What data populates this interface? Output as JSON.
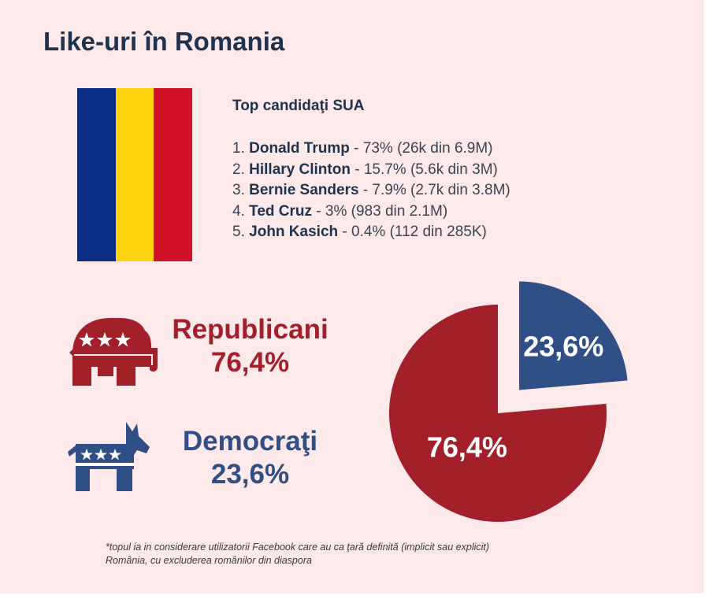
{
  "title": "Like-uri în Romania",
  "top": {
    "heading": "Top candidaţi SUA",
    "items": [
      {
        "rank": "1.",
        "name": "Donald Trump",
        "detail": " - 73% (26k din 6.9M)"
      },
      {
        "rank": "2.",
        "name": "Hillary Clinton",
        "detail": " - 15.7% (5.6k din 3M)"
      },
      {
        "rank": "3.",
        "name": "Bernie Sanders",
        "detail": " - 7.9% (2.7k din 3.8M)"
      },
      {
        "rank": "4.",
        "name": "Ted Cruz",
        "detail": " - 3% (983 din 2.1M)"
      },
      {
        "rank": "5.",
        "name": "John Kasich",
        "detail": " - 0.4% (112 din 285K)"
      }
    ]
  },
  "parties": {
    "republicans": {
      "name": "Republicani",
      "pct": "76,4%"
    },
    "democrats": {
      "name": "Democraţi",
      "pct": "23,6%"
    }
  },
  "colors": {
    "republican": "#a3202a",
    "democrat": "#2f4f86",
    "flag_blue": "#0b2d84",
    "flag_yellow": "#fdd20f",
    "flag_red": "#d01129"
  },
  "chart_data": {
    "type": "pie",
    "series": [
      {
        "name": "Republicani",
        "value": 76.4,
        "label": "76,4%",
        "color": "#a3202a"
      },
      {
        "name": "Democraţi",
        "value": 23.6,
        "label": "23,6%",
        "color": "#2f4f86"
      }
    ],
    "exploded": "Democraţi",
    "legend": "none"
  },
  "footnote": {
    "line1": "*topul ia in considerare utilizatorii Facebook care au ca ţară definită (implicit sau explicit)",
    "line2": "România, cu excluderea românilor din diaspora"
  }
}
